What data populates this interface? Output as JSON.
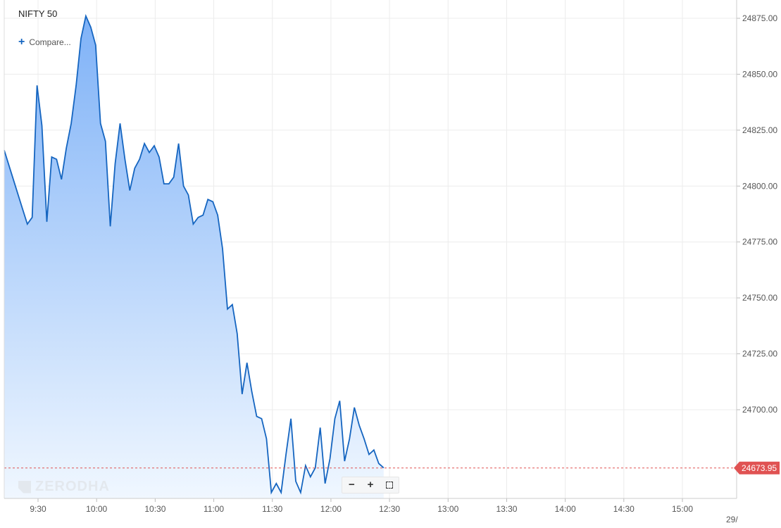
{
  "header": {
    "instrument": "NIFTY 50",
    "compare_label": "Compare..."
  },
  "watermark": "ZERODHA",
  "colors": {
    "line": "#1565c0",
    "area_top": "#7fb2f7",
    "area_bottom": "#f0f7ff",
    "grid": "#ececec",
    "price_tag": "#e05252"
  },
  "icons": {
    "compare": "plus-icon",
    "zoom_out": "minus-icon",
    "zoom_in": "plus-icon",
    "fullscreen": "fullscreen-icon"
  },
  "chart_data": {
    "type": "area",
    "title": "NIFTY 50",
    "xlabel": "",
    "ylabel": "",
    "ylim": [
      24660,
      24880
    ],
    "yticks": [
      24700,
      24725,
      24750,
      24775,
      24800,
      24825,
      24850,
      24875
    ],
    "ytick_labels": [
      "24700.00",
      "24725.00",
      "24750.00",
      "24775.00",
      "24800.00",
      "24825.00",
      "24850.00",
      "24875.00"
    ],
    "xticks": [
      "9:30",
      "10:00",
      "10:30",
      "11:00",
      "11:30",
      "12:00",
      "12:30",
      "13:00",
      "13:30",
      "14:00",
      "14:30",
      "15:00"
    ],
    "xtick_minutes": [
      570,
      600,
      630,
      660,
      690,
      720,
      750,
      780,
      810,
      840,
      870,
      900
    ],
    "next_day_label": "29/",
    "x_start_minute": 559.5,
    "minutes_per_point": 2.5,
    "last_price_label": "24673.95",
    "last_price": 24673.95,
    "grid": true,
    "series": [
      {
        "values": [
          24816,
          24790,
          24783,
          24786,
          24845,
          24827,
          24784,
          24813,
          24812,
          24803,
          24817,
          24828,
          24845,
          24866,
          24876,
          24871,
          24863,
          24828,
          24820,
          24782,
          24810,
          24828,
          24812,
          24798,
          24808,
          24812,
          24819,
          24815,
          24818,
          24813,
          24801,
          24801,
          24804,
          24819,
          24800,
          24796,
          24783,
          24786,
          24787,
          24794,
          24793,
          24787,
          24772,
          24745,
          24747,
          24734,
          24707,
          24721,
          24708,
          24697,
          24696,
          24687,
          24663,
          24667,
          24663,
          24680,
          24696,
          24668,
          24663,
          24675,
          24670,
          24674,
          24692,
          24667,
          24678,
          24696,
          24704,
          24677,
          24687,
          24701,
          24693,
          24687,
          24680,
          24682,
          24676,
          24674
        ]
      }
    ]
  }
}
